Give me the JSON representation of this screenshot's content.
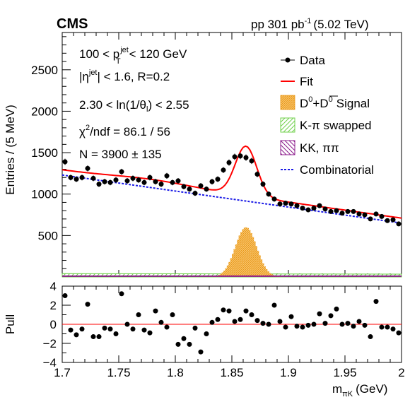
{
  "header": {
    "experiment": "CMS",
    "lumi_prefix": "pp 301 pb",
    "lumi_exp": "-1",
    "lumi_suffix": "(5.02 TeV)"
  },
  "annotations": {
    "pt_pre": "100 < p",
    "pt_sup": "jet",
    "pt_sub": "T",
    "pt_post": "< 120 GeV",
    "eta_pre": "|η",
    "eta_sup": "jet",
    "eta_post": "| < 1.6, R=0.2",
    "theta": "2.30 < ln(1/θ",
    "theta_sub": "l",
    "theta_post": ") <  2.55",
    "chi_pre": "χ",
    "chi_sup": "2",
    "chi_post": "/ndf = 86.1 / 56",
    "n": "N = 3900 ± 135"
  },
  "legend": {
    "data": "Data",
    "fit": "Fit",
    "signal_d": "D",
    "signal_sup1": "0",
    "signal_plus": "+",
    "signal_dbar": "D",
    "signal_sup2": "0",
    "signal_word": "Signal",
    "swapped": "K-π swapped",
    "kk": "KK, ππ",
    "comb": "Combinatorial"
  },
  "colors": {
    "fit": "#ff0000",
    "signal": "#f5a623",
    "swapped": "#7ed957",
    "kk": "#8b1a8b",
    "comb": "#1a1ae6",
    "data": "#000000"
  },
  "chart_data": [
    {
      "type": "scatter",
      "title": "",
      "ylabel": "Entries / (5 MeV)",
      "xlim": [
        1.7,
        2.0
      ],
      "ylim": [
        0,
        2950
      ],
      "yticks": [
        "500",
        "1000",
        "1500",
        "2000",
        "2500"
      ],
      "ytick_values": [
        500,
        1000,
        1500,
        2000,
        2500
      ],
      "series": [
        {
          "name": "Data",
          "x": [
            1.7025,
            1.7075,
            1.7125,
            1.7175,
            1.7225,
            1.7275,
            1.7325,
            1.7375,
            1.7425,
            1.7475,
            1.7525,
            1.7575,
            1.7625,
            1.7675,
            1.7725,
            1.7775,
            1.7825,
            1.7875,
            1.7925,
            1.7975,
            1.8025,
            1.8075,
            1.8125,
            1.8175,
            1.8225,
            1.8275,
            1.8325,
            1.8375,
            1.8425,
            1.8475,
            1.8525,
            1.8575,
            1.8625,
            1.8675,
            1.8725,
            1.8775,
            1.8825,
            1.8875,
            1.8925,
            1.8975,
            1.9025,
            1.9075,
            1.9125,
            1.9175,
            1.9225,
            1.9275,
            1.9325,
            1.9375,
            1.9425,
            1.9475,
            1.9525,
            1.9575,
            1.9625,
            1.9675,
            1.9725,
            1.9775,
            1.9825,
            1.9875,
            1.9925,
            1.9975
          ],
          "y": [
            1390,
            1200,
            1180,
            1200,
            1310,
            1190,
            1120,
            1150,
            1140,
            1170,
            1270,
            1160,
            1190,
            1170,
            1140,
            1200,
            1150,
            1120,
            1220,
            1140,
            1160,
            1090,
            1060,
            1010,
            1100,
            1060,
            1150,
            1180,
            1290,
            1380,
            1450,
            1460,
            1440,
            1400,
            1240,
            1120,
            1000,
            940,
            880,
            890,
            880,
            860,
            830,
            810,
            830,
            860,
            820,
            790,
            800,
            770,
            790,
            790,
            760,
            750,
            700,
            760,
            730,
            680,
            690,
            640
          ]
        },
        {
          "name": "Fit"
        },
        {
          "name": "Combinatorial",
          "x": [
            1.7,
            2.0
          ],
          "y": [
            1230,
            650
          ]
        },
        {
          "name": "D0+D0 Signal",
          "x_range": [
            1.82,
            1.91
          ],
          "peak_x": 1.8625,
          "peak_y": 600
        },
        {
          "name": "K-π swapped",
          "level": 40
        },
        {
          "name": "KK, ππ",
          "level": 10
        }
      ]
    },
    {
      "type": "scatter",
      "ylabel": "Pull",
      "xlabel_pre": "m",
      "xlabel_sub": "πK",
      "xlabel_post": "(GeV)",
      "xlim": [
        1.7,
        2.0
      ],
      "ylim": [
        -4,
        4
      ],
      "xticks": [
        "1.7",
        "1.75",
        "1.8",
        "1.85",
        "1.9",
        "1.95",
        "2"
      ],
      "xtick_values": [
        1.7,
        1.75,
        1.8,
        1.85,
        1.9,
        1.95,
        2.0
      ],
      "yticks": [
        "4",
        "2",
        "0",
        "−2",
        "−4"
      ],
      "ytick_values": [
        4,
        2,
        0,
        -2,
        -4
      ],
      "series": [
        {
          "name": "Pull",
          "x": [
            1.7025,
            1.7075,
            1.7125,
            1.7175,
            1.7225,
            1.7275,
            1.7325,
            1.7375,
            1.7425,
            1.7475,
            1.7525,
            1.7575,
            1.7625,
            1.7675,
            1.7725,
            1.7775,
            1.7825,
            1.7875,
            1.7925,
            1.7975,
            1.8025,
            1.8075,
            1.8125,
            1.8175,
            1.8225,
            1.8275,
            1.8325,
            1.8375,
            1.8425,
            1.8475,
            1.8525,
            1.8575,
            1.8625,
            1.8675,
            1.8725,
            1.8775,
            1.8825,
            1.8875,
            1.8925,
            1.8975,
            1.9025,
            1.9075,
            1.9125,
            1.9175,
            1.9225,
            1.9275,
            1.9325,
            1.9375,
            1.9425,
            1.9475,
            1.9525,
            1.9575,
            1.9625,
            1.9675,
            1.9725,
            1.9775,
            1.9825,
            1.9875,
            1.9925,
            1.9975
          ],
          "y": [
            3.0,
            -0.6,
            -1.1,
            -0.5,
            2.1,
            -1.3,
            -1.3,
            -0.4,
            -0.5,
            -1.0,
            3.2,
            0.0,
            -0.5,
            1.0,
            -0.6,
            -0.9,
            1.4,
            0.2,
            -0.3,
            1.0,
            -2.1,
            -1.5,
            -2.1,
            -0.4,
            -2.9,
            -1.0,
            0.2,
            0.5,
            1.5,
            1.4,
            0.3,
            0.5,
            1.4,
            1.0,
            0.4,
            0.1,
            0.0,
            2.0,
            0.3,
            -0.3,
            0.8,
            -0.2,
            -0.3,
            -0.1,
            0.0,
            1.1,
            0.1,
            0.9,
            1.6,
            0.0,
            0.1,
            -0.2,
            0.3,
            -0.1,
            -1.3,
            2.4,
            -0.3,
            -0.3,
            -0.5,
            -0.9
          ]
        }
      ]
    }
  ]
}
